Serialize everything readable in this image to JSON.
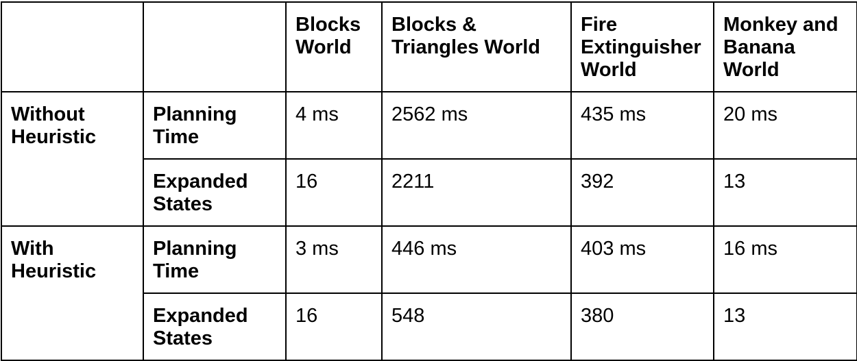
{
  "table": {
    "columns": [
      "",
      "",
      "Blocks\nWorld",
      "Blocks &\nTriangles World",
      "Fire\nExtinguisher\nWorld",
      "Monkey and\nBanana\nWorld"
    ],
    "groups": [
      {
        "label": "Without\nHeuristic",
        "rows": [
          {
            "metric": "Planning\nTime",
            "values": [
              "4 ms",
              "2562 ms",
              "435 ms",
              "20 ms"
            ]
          },
          {
            "metric": "Expanded\nStates",
            "values": [
              "16",
              "2211",
              "392",
              "13"
            ]
          }
        ]
      },
      {
        "label": "With\nHeuristic",
        "rows": [
          {
            "metric": "Planning\nTime",
            "values": [
              "3 ms",
              "446 ms",
              "403 ms",
              "16 ms"
            ]
          },
          {
            "metric": "Expanded\nStates",
            "values": [
              "16",
              "548",
              "380",
              "13"
            ]
          }
        ]
      }
    ]
  }
}
